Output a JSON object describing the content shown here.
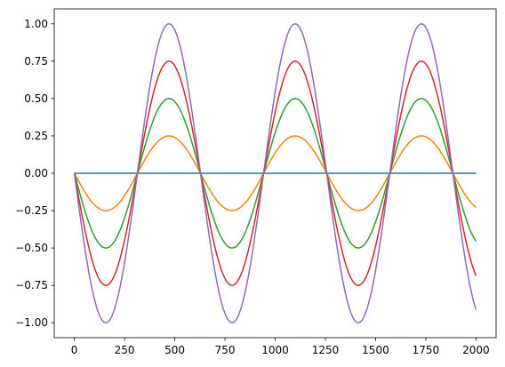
{
  "chart_data": {
    "type": "line",
    "title": "",
    "xlabel": "",
    "ylabel": "",
    "xlim": [
      -100,
      2100
    ],
    "ylim": [
      -1.1,
      1.1
    ],
    "x_ticks": [
      0,
      250,
      500,
      750,
      1000,
      1250,
      1500,
      1750,
      2000
    ],
    "x_tick_labels": [
      "0",
      "250",
      "500",
      "750",
      "1000",
      "1250",
      "1500",
      "1750",
      "2000"
    ],
    "y_ticks": [
      -1.0,
      -0.75,
      -0.5,
      -0.25,
      0.0,
      0.25,
      0.5,
      0.75,
      1.0
    ],
    "y_tick_labels": [
      "−1.00",
      "−0.75",
      "−0.50",
      "−0.25",
      "0.00",
      "0.25",
      "0.50",
      "0.75",
      "1.00"
    ],
    "grid": false,
    "legend": "none",
    "x_range": [
      0,
      2000
    ],
    "period": 628.3,
    "waveform": "-sin",
    "series": [
      {
        "amplitude": 0.0,
        "color": "#1f77b4"
      },
      {
        "amplitude": 0.25,
        "color": "#ff7f0e"
      },
      {
        "amplitude": 0.5,
        "color": "#2ca02c"
      },
      {
        "amplitude": 0.75,
        "color": "#d62728"
      },
      {
        "amplitude": 1.0,
        "color": "#9467bd"
      }
    ]
  }
}
